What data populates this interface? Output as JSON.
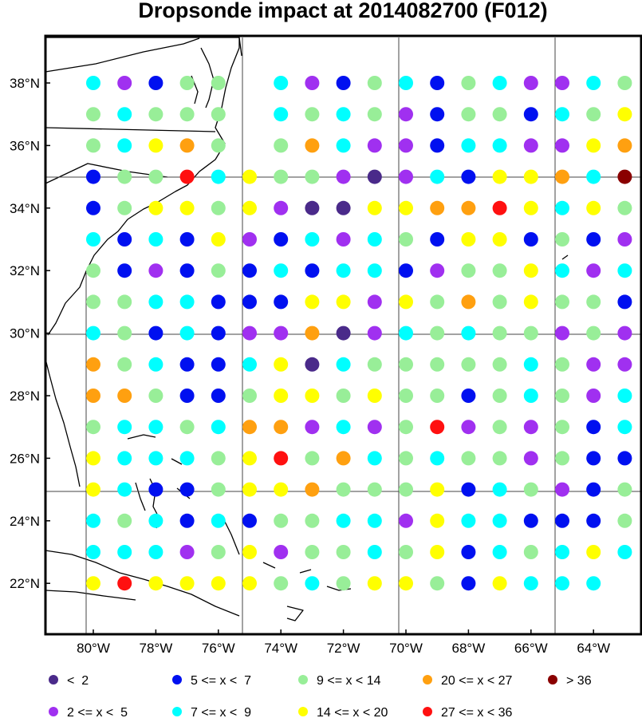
{
  "title": "Dropsonde impact at 2014082700 (F012)",
  "lat_labels": [
    "38°N",
    "36°N",
    "34°N",
    "32°N",
    "30°N",
    "28°N",
    "26°N",
    "24°N",
    "22°N"
  ],
  "lon_labels": [
    "80°W",
    "78°W",
    "76°W",
    "74°W",
    "72°W",
    "70°W",
    "68°W",
    "66°W",
    "64°W"
  ],
  "legend": [
    {
      "label": "<  2",
      "color": "#4a2a8a"
    },
    {
      "label": "5 <= x <  7",
      "color": "#0010f0"
    },
    {
      "label": "9 <= x < 14",
      "color": "#98ee98"
    },
    {
      "label": "20 <= x < 27",
      "color": "#ffa010"
    },
    {
      "label": "> 36",
      "color": "#8a0000"
    },
    {
      "label": "2 <= x <  5",
      "color": "#a030f0"
    },
    {
      "label": "7 <= x <  9",
      "color": "#00ffff"
    },
    {
      "label": "14 <= x < 20",
      "color": "#ffff00"
    },
    {
      "label": "27 <= x < 36",
      "color": "#ff1010"
    }
  ],
  "chart_data": {
    "type": "scatter",
    "title": "Dropsonde impact at 2014082700 (F012)",
    "xlim": [
      -81.3,
      -62.4
    ],
    "ylim": [
      20.5,
      39.5
    ],
    "lon_start": -80,
    "lon_step": 1,
    "lat_start": 38,
    "lat_step": -1,
    "colors": {
      "p": "#4a2a8a",
      "v": "#a030f0",
      "b": "#0010f0",
      "c": "#00ffff",
      "g": "#98ee98",
      "y": "#ffff00",
      "o": "#ffa010",
      "r": "#ff1010",
      "d": "#8a0000"
    },
    "rows": [
      "cvbgg.cvbgcbgcvvcg",
      "gcggg.cgcgvbggbcgy",
      "gcyog.gocvvbccvvyo",
      "bggrcyggvpvcbyyocd",
      "bgyygyvppyyoorycyg",
      "cbcbyvbcvcgbyybgbv",
      "gbvbgbcbccbvggycvc",
      "ggccbbbyyvygogyggb",
      "cgbcbvvopvcgcggvgv",
      "ogcbbcypcgggggcgvv",
      "oogbbgyygyggbgcgvc",
      "gccgcoovcvgrvgvgbc",
      "ycccgyrgocgcggvgbb",
      "ycbbgyyogggybcgvbg",
      "cgcbcbggccvyccbbbg",
      "cccvgyvggcgybcgcyc",
      "yryyyygcgyygbyccc"
    ]
  }
}
